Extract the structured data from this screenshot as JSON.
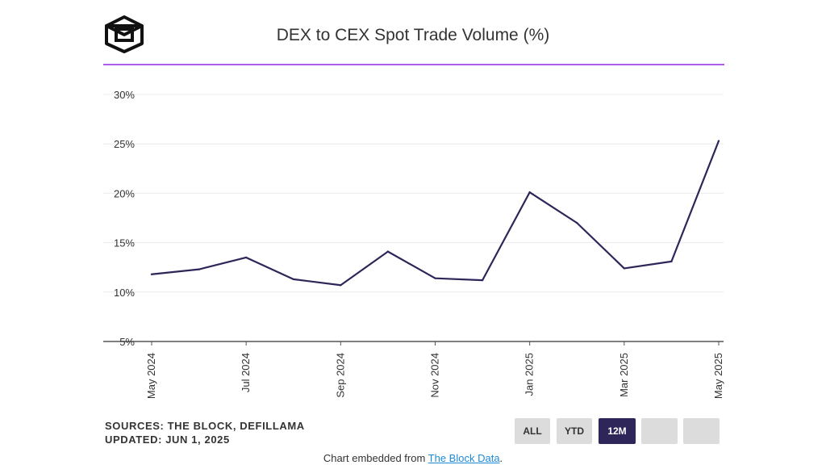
{
  "header": {
    "title": "DEX to CEX Spot Trade Volume (%)"
  },
  "chart_data": {
    "type": "line",
    "title": "DEX to CEX Spot Trade Volume (%)",
    "xlabel": "",
    "ylabel": "",
    "ylim": [
      5,
      30
    ],
    "yticks": [
      "30%",
      "25%",
      "20%",
      "15%",
      "10%",
      "5%"
    ],
    "ytick_values": [
      30,
      25,
      20,
      15,
      10,
      5
    ],
    "x": [
      "May 2024",
      "Jun 2024",
      "Jul 2024",
      "Aug 2024",
      "Sep 2024",
      "Oct 2024",
      "Nov 2024",
      "Dec 2024",
      "Jan 2025",
      "Feb 2025",
      "Mar 2025",
      "Apr 2025",
      "May 2025"
    ],
    "xtick_labels": [
      "May 2024",
      "",
      "Jul 2024",
      "",
      "Sep 2024",
      "",
      "Nov 2024",
      "",
      "Jan 2025",
      "",
      "Mar 2025",
      "",
      "May 2025"
    ],
    "series": [
      {
        "values": [
          11.8,
          12.3,
          13.5,
          11.3,
          10.7,
          14.1,
          11.4,
          11.2,
          20.1,
          17.0,
          12.4,
          13.1,
          25.3
        ]
      }
    ],
    "line_color": "#2e2658",
    "grid": true,
    "legend": "none"
  },
  "footer": {
    "sources": "SOURCES: THE BLOCK, DEFILLAMA",
    "updated": "UPDATED: JUN 1, 2025",
    "embed_prefix": "Chart embedded from ",
    "embed_link": "The Block Data",
    "embed_suffix": "."
  },
  "range_buttons": {
    "all": "ALL",
    "ytd": "YTD",
    "m12": "12M",
    "blank1": "",
    "blank2": ""
  },
  "colors": {
    "accent_rule": "#a95de8",
    "line": "#2e2658",
    "active_button": "#2e2658",
    "button": "#dcdcdc",
    "link": "#1f8ad8"
  }
}
